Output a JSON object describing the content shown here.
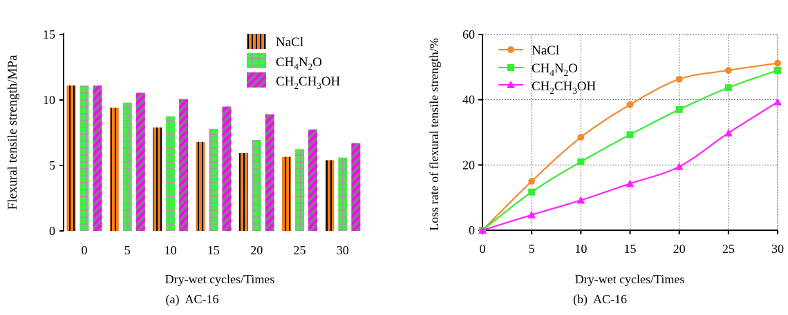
{
  "chart_data": [
    {
      "type": "bar",
      "caption": "(a)  AC-16",
      "xlabel": "Dry-wet cycles/Times",
      "ylabel": "Flexural tensile strength/MPa",
      "categories": [
        "0",
        "5",
        "10",
        "15",
        "20",
        "25",
        "30"
      ],
      "ylim": [
        0,
        15
      ],
      "yticks": [
        "0",
        "5",
        "10",
        "15"
      ],
      "grid": false,
      "legend": "top-right",
      "series": [
        {
          "name": "NaCl",
          "color": "#f07f22",
          "pattern": "vertical-stripes",
          "values": [
            11.1,
            9.4,
            7.9,
            6.8,
            5.95,
            5.65,
            5.4
          ]
        },
        {
          "name": "CH4N2O",
          "color": "#44ee44",
          "pattern": "grid",
          "values": [
            11.1,
            9.8,
            8.75,
            7.8,
            6.95,
            6.25,
            5.6
          ]
        },
        {
          "name": "CH2CH3OH",
          "color": "#ff00ff",
          "pattern": "diagonal-stripes",
          "values": [
            11.1,
            10.55,
            10.05,
            9.5,
            8.9,
            7.75,
            6.7
          ]
        }
      ]
    },
    {
      "type": "line",
      "caption": "(b)  AC-16",
      "xlabel": "Dry-wet cycles/Times",
      "ylabel": "Loss rate of flexural tensile strength/%",
      "x": [
        0,
        5,
        10,
        15,
        20,
        25,
        30
      ],
      "xticks": [
        "0",
        "5",
        "10",
        "15",
        "20",
        "25",
        "30"
      ],
      "xlim": [
        0,
        30
      ],
      "ylim": [
        0,
        60
      ],
      "yticks": [
        "0",
        "20",
        "40",
        "60"
      ],
      "grid": true,
      "legend": "top-left",
      "series": [
        {
          "name": "NaCl",
          "color": "#f28a2e",
          "marker": "circle",
          "values": [
            0,
            15,
            28.5,
            38.5,
            46.3,
            49,
            51.2
          ]
        },
        {
          "name": "CH4N2O",
          "color": "#33ee33",
          "marker": "square",
          "values": [
            0,
            11.7,
            21,
            29.3,
            37,
            43.7,
            49
          ]
        },
        {
          "name": "CH2CH3OH",
          "color": "#ff22ff",
          "marker": "triangle",
          "values": [
            0,
            4.7,
            9.2,
            14.3,
            19.5,
            29.8,
            39.3
          ]
        }
      ]
    }
  ]
}
